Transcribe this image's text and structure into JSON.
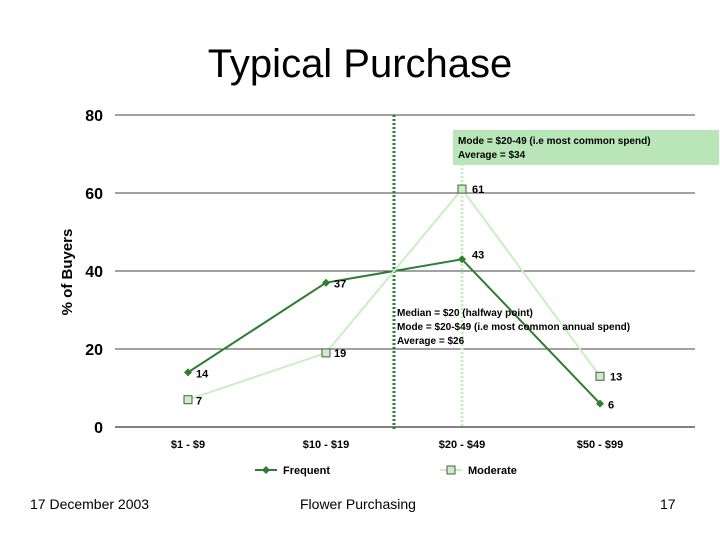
{
  "slide": {
    "title": "Typical Purchase",
    "footer_date": "17 December 2003",
    "footer_center": "Flower Purchasing",
    "page_number": "17"
  },
  "annotations": {
    "top_box": [
      "Mode = $20-49 (i.e most common spend)",
      "Average = $34"
    ],
    "median": [
      "Median = $20 (halfway point)",
      "Mode = $20-$49 (i.e most common annual spend)",
      "Average = $26"
    ]
  },
  "colors": {
    "frequent": "#2e7d32",
    "moderate": "#c8f0c0",
    "annotation_box": "#b8e6b8",
    "median_line": "#2e7d32",
    "mode_line": "#c8f0c0"
  },
  "chart_data": {
    "type": "line",
    "title": "",
    "xlabel": "",
    "ylabel": "% of Buyers",
    "ylim": [
      0,
      80
    ],
    "yticks": [
      0,
      20,
      40,
      60,
      80
    ],
    "categories": [
      "$1 - $9",
      "$10 - $19",
      "$20 - $49",
      "$50 - $99"
    ],
    "grid": true,
    "legend": "bottom",
    "series": [
      {
        "name": "Frequent",
        "values": [
          14,
          37,
          43,
          6
        ],
        "labels": [
          "14",
          "37",
          "43",
          "6"
        ],
        "marker": "diamond"
      },
      {
        "name": "Moderate",
        "values": [
          7,
          19,
          61,
          13
        ],
        "labels": [
          "7",
          "19",
          "61",
          "13"
        ],
        "marker": "square"
      }
    ]
  }
}
